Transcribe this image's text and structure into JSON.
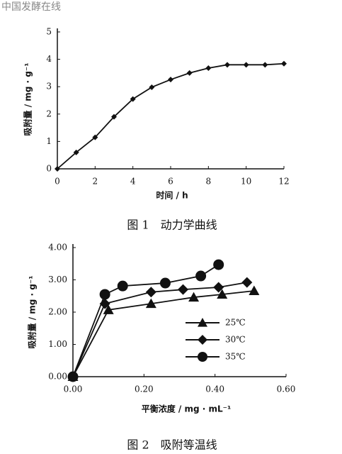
{
  "watermark": "中国发酵在线",
  "chart_data": [
    {
      "type": "line",
      "caption": "图 1　动力学曲线",
      "x_label": "时间 / h",
      "y_label": "吸附量 / mg · g⁻¹",
      "x": [
        0,
        1,
        2,
        3,
        4,
        5,
        6,
        7,
        8,
        9,
        10,
        11,
        12
      ],
      "values": [
        0,
        0.6,
        1.15,
        1.9,
        2.55,
        2.98,
        3.26,
        3.5,
        3.68,
        3.8,
        3.8,
        3.8,
        3.84
      ],
      "color": "#111111",
      "marker": "diamond",
      "xlim": [
        0,
        12
      ],
      "xticks": [
        0,
        2,
        4,
        6,
        8,
        10,
        12
      ],
      "ylim": [
        0,
        5
      ],
      "yticks": [
        0,
        1,
        2,
        3,
        4,
        5
      ]
    },
    {
      "type": "line",
      "caption": "图 2　吸附等温线",
      "x_label": "平衡浓度 / mg · mL⁻¹",
      "y_label": "吸附量 / mg · g⁻¹",
      "series": [
        {
          "name": "25℃",
          "color": "#111111",
          "marker": "triangle",
          "x": [
            0,
            0.1,
            0.22,
            0.34,
            0.42,
            0.51
          ],
          "values": [
            0,
            2.07,
            2.26,
            2.46,
            2.55,
            2.66
          ]
        },
        {
          "name": "30℃",
          "color": "#111111",
          "marker": "diamond",
          "x": [
            0,
            0.09,
            0.22,
            0.31,
            0.41,
            0.49
          ],
          "values": [
            0,
            2.26,
            2.62,
            2.7,
            2.77,
            2.92
          ]
        },
        {
          "name": "35℃",
          "color": "#111111",
          "marker": "circle",
          "x": [
            0,
            0.09,
            0.14,
            0.26,
            0.36,
            0.41
          ],
          "values": [
            0,
            2.55,
            2.81,
            2.9,
            3.12,
            3.47
          ]
        }
      ],
      "legend": "right",
      "xlim": [
        0,
        0.6
      ],
      "xticks": [
        {
          "value": 0,
          "label": "0.00"
        },
        {
          "value": 0.2,
          "label": "0.20"
        },
        {
          "value": 0.4,
          "label": "0.40"
        },
        {
          "value": 0.6,
          "label": "0.60"
        }
      ],
      "ylim": [
        0,
        4
      ],
      "yticks": [
        {
          "value": 0,
          "label": "0.00"
        },
        {
          "value": 1,
          "label": "1.00"
        },
        {
          "value": 2,
          "label": "2.00"
        },
        {
          "value": 3,
          "label": "3.00"
        },
        {
          "value": 4,
          "label": "4.00"
        }
      ]
    }
  ]
}
